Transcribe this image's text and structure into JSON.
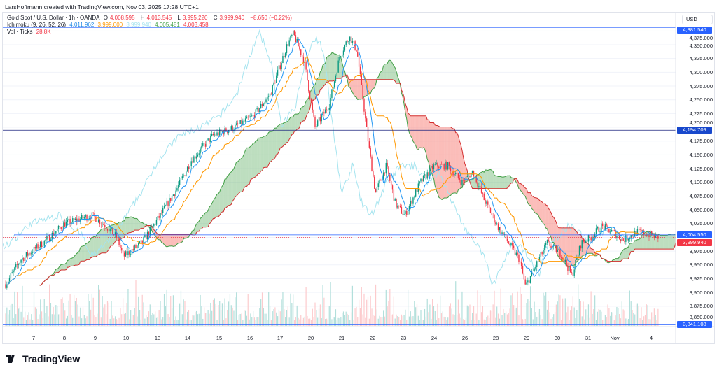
{
  "credit": "LarsHoffmann created with TradingView.com, Nov 03, 2025 17:28 UTC+1",
  "legend": {
    "symbol": "Gold Spot / U.S. Dollar · 1h · OANDA",
    "o_label": "O",
    "o": "4,008.595",
    "h_label": "H",
    "h": "4,013.545",
    "l_label": "L",
    "l": "3,995.220",
    "c_label": "C",
    "c": "3,999.940",
    "change": "−8.650 (−0.22%)",
    "ichimoku": "Ichimoku (9, 26, 52, 26)",
    "ich_vals": [
      "4,011.962",
      "3,999.000",
      "3,999.940",
      "4,005.481",
      "4,003.458"
    ],
    "vol": "Vol · Ticks",
    "vol_val": "28.8K"
  },
  "currency": "USD",
  "price_axis": [
    "4,375.000",
    "4,350.000",
    "4,325.000",
    "4,300.000",
    "4,275.000",
    "4,250.000",
    "4,225.000",
    "4,200.000",
    "4,175.000",
    "4,150.000",
    "4,125.000",
    "4,100.000",
    "4,075.000",
    "4,050.000",
    "4,025.000",
    "3,975.000",
    "3,950.000",
    "3,925.000",
    "3,900.000",
    "3,875.000",
    "3,850.000"
  ],
  "tags": [
    {
      "text": "4,381.540",
      "value": 4381.54,
      "color": "#2962ff"
    },
    {
      "text": "4,194.709",
      "value": 4194.709,
      "color": "#1848cc"
    },
    {
      "text": "4,004.550",
      "value": 4004.55,
      "color": "#2962ff"
    },
    {
      "text": "3,999.940",
      "value": 3999.94,
      "color": "#f23645"
    },
    {
      "text": "3,841.108",
      "value": 3841.108,
      "color": "#2962ff"
    }
  ],
  "time_axis": [
    "7",
    "8",
    "9",
    "10",
    "13",
    "14",
    "15",
    "16",
    "17",
    "20",
    "21",
    "22",
    "23",
    "24",
    "26",
    "28",
    "29",
    "30",
    "31",
    "Nov",
    "4"
  ],
  "logo": "TradingView",
  "colors": {
    "up": "#089981",
    "down": "#f23645",
    "tenkan": "#2196f3",
    "kijun": "#ff9800",
    "lagging": "#a5e4ef",
    "spanA": "#43a047",
    "spanB": "#d32f2f"
  },
  "chart_data": {
    "type": "candlestick",
    "title": "Gold Spot / U.S. Dollar · 1h · OANDA",
    "ylim": [
      3835,
      4385
    ],
    "price_path_day_index": [
      0,
      0.5,
      1.2,
      1.9,
      2.8,
      3.25,
      3.6,
      3.8,
      4.4,
      5,
      5.55,
      6,
      6.7,
      7.4,
      8,
      8.55,
      9.1,
      9.3,
      9.65,
      10,
      10.45,
      10.8,
      11.1,
      11.35,
      11.7,
      11.95,
      12.3,
      12.6,
      12.9,
      13.4,
      13.85,
      14.3,
      14.75,
      15.1,
      15.45,
      15.9,
      16.25,
      16.6,
      16.8,
      17.1,
      17.5,
      17.95,
      18.3,
      18.6,
      18.9,
      19.25,
      19.6,
      19.95,
      20.4,
      20.8,
      21.1
    ],
    "price_path_close": [
      3915,
      3960,
      3990,
      4025,
      4040,
      4020,
      4000,
      3965,
      3990,
      4040,
      4090,
      4140,
      4185,
      4200,
      4220,
      4260,
      4350,
      4370,
      4320,
      4200,
      4240,
      4330,
      4365,
      4340,
      4180,
      4080,
      4130,
      4060,
      4040,
      4100,
      4130,
      4130,
      4100,
      4120,
      4070,
      4020,
      3990,
      3960,
      3910,
      3945,
      3990,
      3970,
      3930,
      3990,
      4000,
      4020,
      4010,
      3995,
      4010,
      4005,
      3999.94
    ],
    "indicators": [
      "Ichimoku (9, 26, 52, 26)",
      "Vol · Ticks"
    ]
  }
}
